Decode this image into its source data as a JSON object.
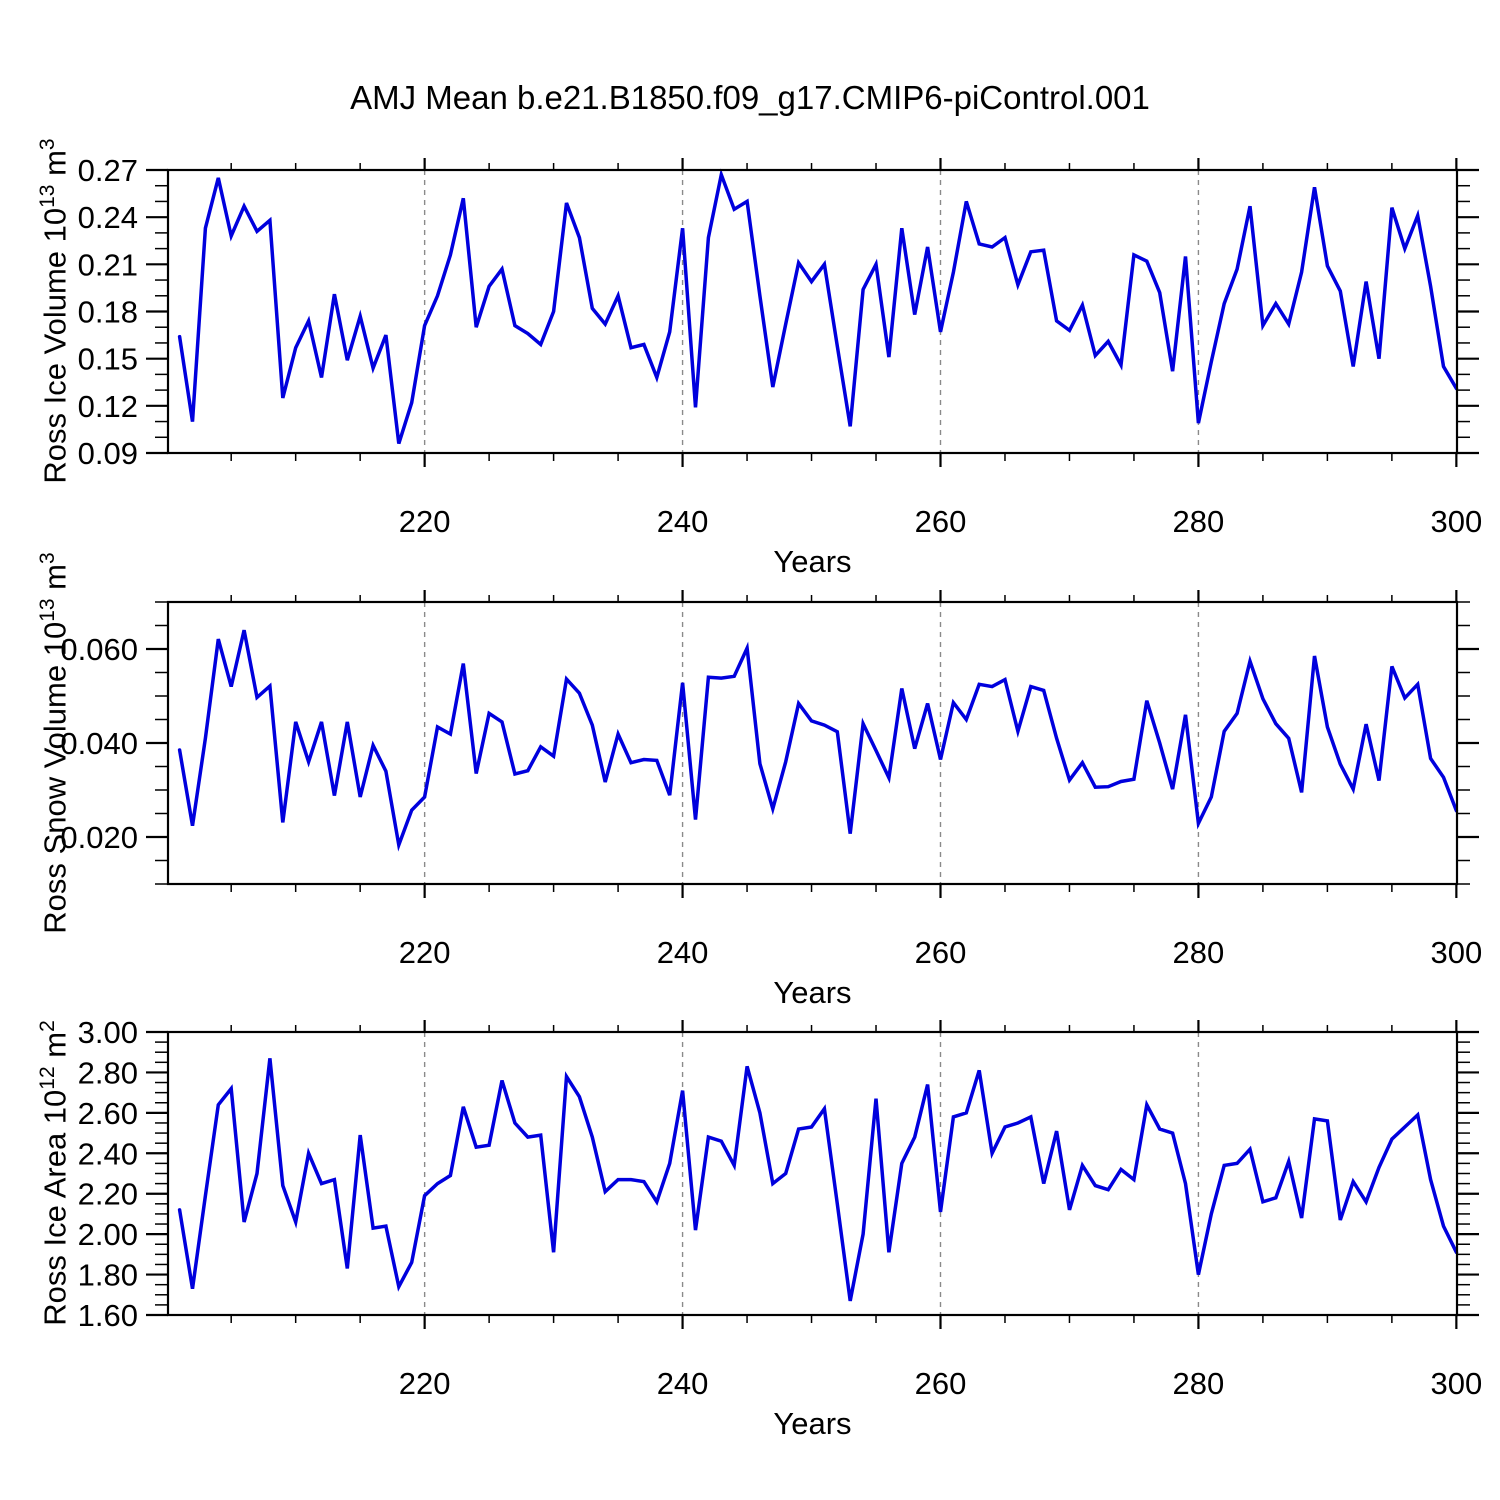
{
  "title": "AMJ Mean b.e21.B1850.f09_g17.CMIP6-piControl.001",
  "colors": {
    "line": "#0000dd",
    "gridline": "#8a8a8a",
    "frame": "#000000",
    "text": "#000000",
    "background": "#ffffff"
  },
  "chart_data": [
    {
      "type": "line",
      "name": "ross-ice-volume",
      "xlabel": "Years",
      "ylabel": {
        "prefix": "Ross Ice Volume 10",
        "exp": "13",
        "unit": " m",
        "unit_exp": "3"
      },
      "xlim": [
        200.1,
        300.05
      ],
      "ylim": [
        0.09,
        0.27
      ],
      "xticks": [
        220,
        240,
        260,
        280,
        300
      ],
      "xtick_labels": [
        "220",
        "240",
        "260",
        "280",
        "300"
      ],
      "xtick_minor_step": 5,
      "x_gridlines": [
        220,
        240,
        260,
        280
      ],
      "yticks": [
        0.09,
        0.12,
        0.15,
        0.18,
        0.21,
        0.24,
        0.27
      ],
      "ytick_labels": [
        "0.09",
        "0.12",
        "0.15",
        "0.18",
        "0.21",
        "0.24",
        "0.27"
      ],
      "ytick_minor_step": 0.01,
      "grid": "vertical-dashed-only",
      "legend": "none",
      "year_start": 201,
      "year_step": 1,
      "values": [
        0.164,
        0.11,
        0.233,
        0.265,
        0.228,
        0.247,
        0.231,
        0.238,
        0.125,
        0.157,
        0.174,
        0.138,
        0.191,
        0.149,
        0.177,
        0.144,
        0.165,
        0.096,
        0.122,
        0.171,
        0.19,
        0.216,
        0.252,
        0.17,
        0.196,
        0.207,
        0.171,
        0.166,
        0.159,
        0.18,
        0.249,
        0.227,
        0.182,
        0.172,
        0.19,
        0.157,
        0.159,
        0.138,
        0.167,
        0.233,
        0.119,
        0.227,
        0.267,
        0.245,
        0.25,
        0.19,
        0.132,
        0.172,
        0.211,
        0.199,
        0.21,
        0.158,
        0.107,
        0.194,
        0.21,
        0.151,
        0.233,
        0.178,
        0.221,
        0.167,
        0.205,
        0.25,
        0.223,
        0.221,
        0.227,
        0.197,
        0.218,
        0.219,
        0.174,
        0.168,
        0.184,
        0.152,
        0.161,
        0.146,
        0.216,
        0.212,
        0.192,
        0.142,
        0.215,
        0.109,
        0.148,
        0.185,
        0.207,
        0.247,
        0.171,
        0.185,
        0.172,
        0.205,
        0.259,
        0.209,
        0.193,
        0.145,
        0.199,
        0.15,
        0.246,
        0.22,
        0.241,
        0.196,
        0.145,
        0.131
      ]
    },
    {
      "type": "line",
      "name": "ross-snow-volume",
      "xlabel": "Years",
      "ylabel": {
        "prefix": "Ross Snow Volume 10",
        "exp": "13",
        "unit": " m",
        "unit_exp": "3"
      },
      "xlim": [
        200.1,
        300.05
      ],
      "ylim": [
        0.01,
        0.07
      ],
      "xticks": [
        220,
        240,
        260,
        280,
        300
      ],
      "xtick_labels": [
        "220",
        "240",
        "260",
        "280",
        "300"
      ],
      "xtick_minor_step": 5,
      "x_gridlines": [
        220,
        240,
        260,
        280
      ],
      "yticks": [
        0.02,
        0.04,
        0.06
      ],
      "ytick_labels": [
        "0.020",
        "0.040",
        "0.060"
      ],
      "ytick_minor_step": 0.005,
      "grid": "vertical-dashed-only",
      "legend": "none",
      "year_start": 201,
      "year_step": 1,
      "values": [
        0.0385,
        0.0224,
        0.041,
        0.0621,
        0.052,
        0.064,
        0.0497,
        0.0521,
        0.0231,
        0.0445,
        0.036,
        0.0445,
        0.0288,
        0.0445,
        0.0285,
        0.0395,
        0.034,
        0.0183,
        0.0257,
        0.0285,
        0.0434,
        0.0419,
        0.0569,
        0.0335,
        0.0463,
        0.0445,
        0.0334,
        0.0341,
        0.0392,
        0.0372,
        0.0536,
        0.0506,
        0.0438,
        0.0317,
        0.0419,
        0.0358,
        0.0365,
        0.0363,
        0.0289,
        0.0528,
        0.0237,
        0.054,
        0.0538,
        0.0542,
        0.0602,
        0.0356,
        0.026,
        0.036,
        0.0484,
        0.0447,
        0.0438,
        0.0424,
        0.0207,
        0.0441,
        0.0384,
        0.0326,
        0.0516,
        0.0388,
        0.0484,
        0.0365,
        0.0486,
        0.045,
        0.0525,
        0.052,
        0.0535,
        0.0425,
        0.052,
        0.0512,
        0.041,
        0.0321,
        0.0358,
        0.0306,
        0.0307,
        0.0318,
        0.0323,
        0.049,
        0.04,
        0.0302,
        0.046,
        0.0229,
        0.0285,
        0.0425,
        0.0463,
        0.0574,
        0.0494,
        0.0441,
        0.041,
        0.0295,
        0.0585,
        0.0434,
        0.0355,
        0.0302,
        0.044,
        0.032,
        0.0563,
        0.0496,
        0.0525,
        0.0367,
        0.0327,
        0.0256
      ]
    },
    {
      "type": "line",
      "name": "ross-ice-area",
      "xlabel": "Years",
      "ylabel": {
        "prefix": "Ross Ice Area 10",
        "exp": "12",
        "unit": " m",
        "unit_exp": "2"
      },
      "xlim": [
        200.1,
        300.05
      ],
      "ylim": [
        1.6,
        3.0
      ],
      "xticks": [
        220,
        240,
        260,
        280,
        300
      ],
      "xtick_labels": [
        "220",
        "240",
        "260",
        "280",
        "300"
      ],
      "xtick_minor_step": 5,
      "x_gridlines": [
        220,
        240,
        260,
        280
      ],
      "yticks": [
        1.6,
        1.8,
        2.0,
        2.2,
        2.4,
        2.6,
        2.8,
        3.0
      ],
      "ytick_labels": [
        "1.60",
        "1.80",
        "2.00",
        "2.20",
        "2.40",
        "2.60",
        "2.80",
        "3.00"
      ],
      "ytick_minor_step": 0.05,
      "grid": "vertical-dashed-only",
      "legend": "none",
      "year_start": 201,
      "year_step": 1,
      "values": [
        2.12,
        1.73,
        2.19,
        2.64,
        2.72,
        2.06,
        2.3,
        2.87,
        2.24,
        2.06,
        2.4,
        2.25,
        2.27,
        1.83,
        2.49,
        2.03,
        2.04,
        1.74,
        1.86,
        2.19,
        2.25,
        2.29,
        2.63,
        2.43,
        2.44,
        2.76,
        2.55,
        2.48,
        2.49,
        1.91,
        2.78,
        2.68,
        2.48,
        2.21,
        2.27,
        2.27,
        2.26,
        2.16,
        2.35,
        2.71,
        2.02,
        2.48,
        2.46,
        2.34,
        2.83,
        2.6,
        2.25,
        2.3,
        2.52,
        2.53,
        2.62,
        2.15,
        1.67,
        2.0,
        2.67,
        1.91,
        2.35,
        2.48,
        2.74,
        2.11,
        2.58,
        2.6,
        2.81,
        2.4,
        2.53,
        2.55,
        2.58,
        2.25,
        2.51,
        2.12,
        2.34,
        2.24,
        2.22,
        2.32,
        2.27,
        2.64,
        2.52,
        2.5,
        2.25,
        1.8,
        2.1,
        2.34,
        2.35,
        2.42,
        2.16,
        2.18,
        2.36,
        2.08,
        2.57,
        2.56,
        2.07,
        2.26,
        2.16,
        2.33,
        2.47,
        2.53,
        2.59,
        2.27,
        2.04,
        1.91
      ]
    }
  ]
}
